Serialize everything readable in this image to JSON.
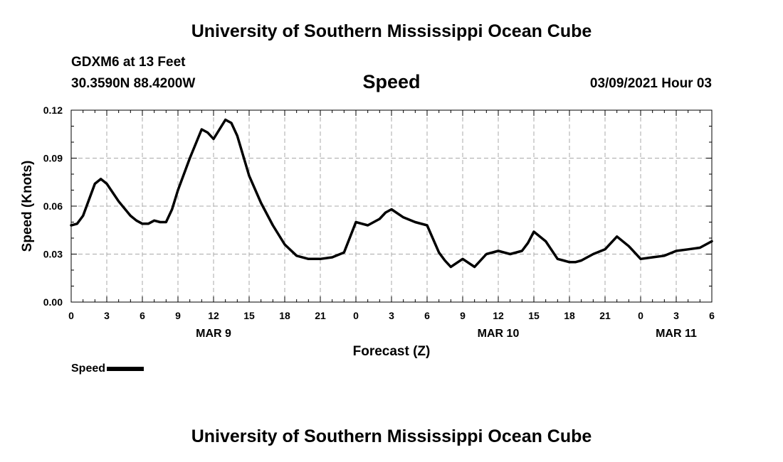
{
  "header": {
    "title_top": "University of Southern Mississippi Ocean Cube",
    "title_bottom": "University of Southern Mississippi Ocean Cube",
    "station": "GDXM6 at 13 Feet",
    "coords": "30.3590N 88.4200W",
    "date": "03/09/2021 Hour 03"
  },
  "legend": {
    "label": "Speed"
  },
  "chart_data": {
    "type": "line",
    "title": "Speed",
    "xlabel": "Forecast (Z)",
    "ylabel": "Speed (Knots)",
    "ylim": [
      0,
      0.12
    ],
    "xlim": [
      0,
      54
    ],
    "grid": true,
    "line_color": "#000000",
    "yticks": [
      0,
      0.03,
      0.06,
      0.09,
      0.12
    ],
    "ytick_labels": [
      "0.00",
      "0.03",
      "0.06",
      "0.09",
      "0.12"
    ],
    "xticks": [
      0,
      3,
      6,
      9,
      12,
      15,
      18,
      21,
      24,
      27,
      30,
      33,
      36,
      39,
      42,
      45,
      48,
      51,
      54
    ],
    "xtick_labels": [
      "0",
      "3",
      "6",
      "9",
      "12",
      "15",
      "18",
      "21",
      "0",
      "3",
      "6",
      "9",
      "12",
      "15",
      "18",
      "21",
      "0",
      "3",
      "6"
    ],
    "day_labels": [
      {
        "label": "MAR 9",
        "x": 12
      },
      {
        "label": "MAR 10",
        "x": 36
      },
      {
        "label": "MAR 11",
        "x": 51
      }
    ],
    "series": [
      {
        "name": "Speed",
        "x": [
          0,
          0.5,
          1,
          2,
          2.5,
          3,
          4,
          5,
          5.5,
          6,
          6.5,
          7,
          7.5,
          8,
          8.5,
          9,
          10,
          11,
          11.5,
          12,
          13,
          13.5,
          14,
          15,
          16,
          17,
          18,
          19,
          20,
          21,
          22,
          23,
          24,
          25,
          26,
          26.5,
          27,
          28,
          29,
          30,
          31,
          31.5,
          32,
          33,
          34,
          35,
          36,
          37,
          38,
          38.5,
          39,
          40,
          41,
          41.5,
          42,
          42.5,
          43,
          44,
          45,
          46,
          47,
          47.5,
          48,
          49,
          50,
          51,
          52,
          53,
          54
        ],
        "values": [
          0.048,
          0.049,
          0.054,
          0.074,
          0.077,
          0.074,
          0.063,
          0.054,
          0.051,
          0.049,
          0.049,
          0.051,
          0.05,
          0.05,
          0.058,
          0.07,
          0.09,
          0.108,
          0.106,
          0.102,
          0.114,
          0.112,
          0.104,
          0.079,
          0.062,
          0.048,
          0.036,
          0.029,
          0.027,
          0.027,
          0.028,
          0.031,
          0.05,
          0.048,
          0.052,
          0.056,
          0.058,
          0.053,
          0.05,
          0.048,
          0.031,
          0.026,
          0.022,
          0.027,
          0.022,
          0.03,
          0.032,
          0.03,
          0.032,
          0.037,
          0.044,
          0.038,
          0.027,
          0.026,
          0.025,
          0.025,
          0.026,
          0.03,
          0.033,
          0.041,
          0.035,
          0.031,
          0.027,
          0.028,
          0.029,
          0.032,
          0.033,
          0.034,
          0.038
        ]
      }
    ]
  }
}
